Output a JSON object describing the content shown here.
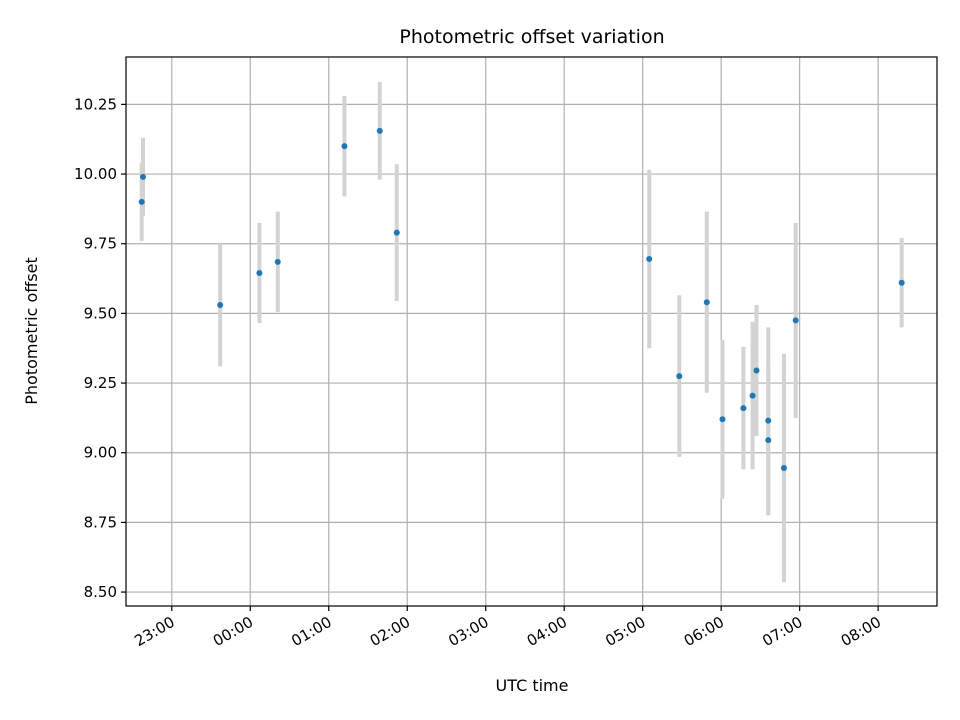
{
  "chart_data": {
    "type": "scatter",
    "title": "Photometric offset variation",
    "xlabel": "UTC time",
    "ylabel": "Photometric offset",
    "grid": true,
    "x_axis": {
      "unit": "UTC time",
      "range": [
        "22:25",
        "08:45"
      ],
      "ticks": [
        "23:00",
        "00:00",
        "01:00",
        "02:00",
        "03:00",
        "04:00",
        "05:00",
        "06:00",
        "07:00",
        "08:00"
      ]
    },
    "y_axis": {
      "range": [
        8.45,
        10.42
      ],
      "ticks": [
        "8.50",
        "8.75",
        "9.00",
        "9.25",
        "9.50",
        "9.75",
        "10.00",
        "10.25"
      ]
    },
    "colors": {
      "point": "#1f77b4",
      "errorbar": "#d3d3d3",
      "grid": "#b0b0b0"
    },
    "points": [
      {
        "time": "22:37",
        "y": 9.9,
        "err": 0.14
      },
      {
        "time": "22:38",
        "y": 9.99,
        "err": 0.14
      },
      {
        "time": "23:37",
        "y": 9.53,
        "err": 0.22
      },
      {
        "time": "00:07",
        "y": 9.645,
        "err": 0.18
      },
      {
        "time": "00:21",
        "y": 9.685,
        "err": 0.18
      },
      {
        "time": "01:12",
        "y": 10.1,
        "err": 0.18
      },
      {
        "time": "01:39",
        "y": 10.155,
        "err": 0.175
      },
      {
        "time": "01:52",
        "y": 9.79,
        "err": 0.245
      },
      {
        "time": "05:05",
        "y": 9.695,
        "err": 0.32
      },
      {
        "time": "05:28",
        "y": 9.275,
        "err": 0.29
      },
      {
        "time": "05:49",
        "y": 9.54,
        "err": 0.325
      },
      {
        "time": "06:01",
        "y": 9.12,
        "err": 0.285
      },
      {
        "time": "06:17",
        "y": 9.16,
        "err": 0.22
      },
      {
        "time": "06:24",
        "y": 9.205,
        "err": 0.265
      },
      {
        "time": "06:27",
        "y": 9.295,
        "err": 0.235
      },
      {
        "time": "06:36",
        "y": 9.115,
        "err": 0.335
      },
      {
        "time": "06:36",
        "y": 9.045,
        "err": 0.27
      },
      {
        "time": "06:48",
        "y": 8.945,
        "err": 0.41
      },
      {
        "time": "06:57",
        "y": 9.475,
        "err": 0.35
      },
      {
        "time": "08:18",
        "y": 9.61,
        "err": 0.16
      }
    ]
  }
}
